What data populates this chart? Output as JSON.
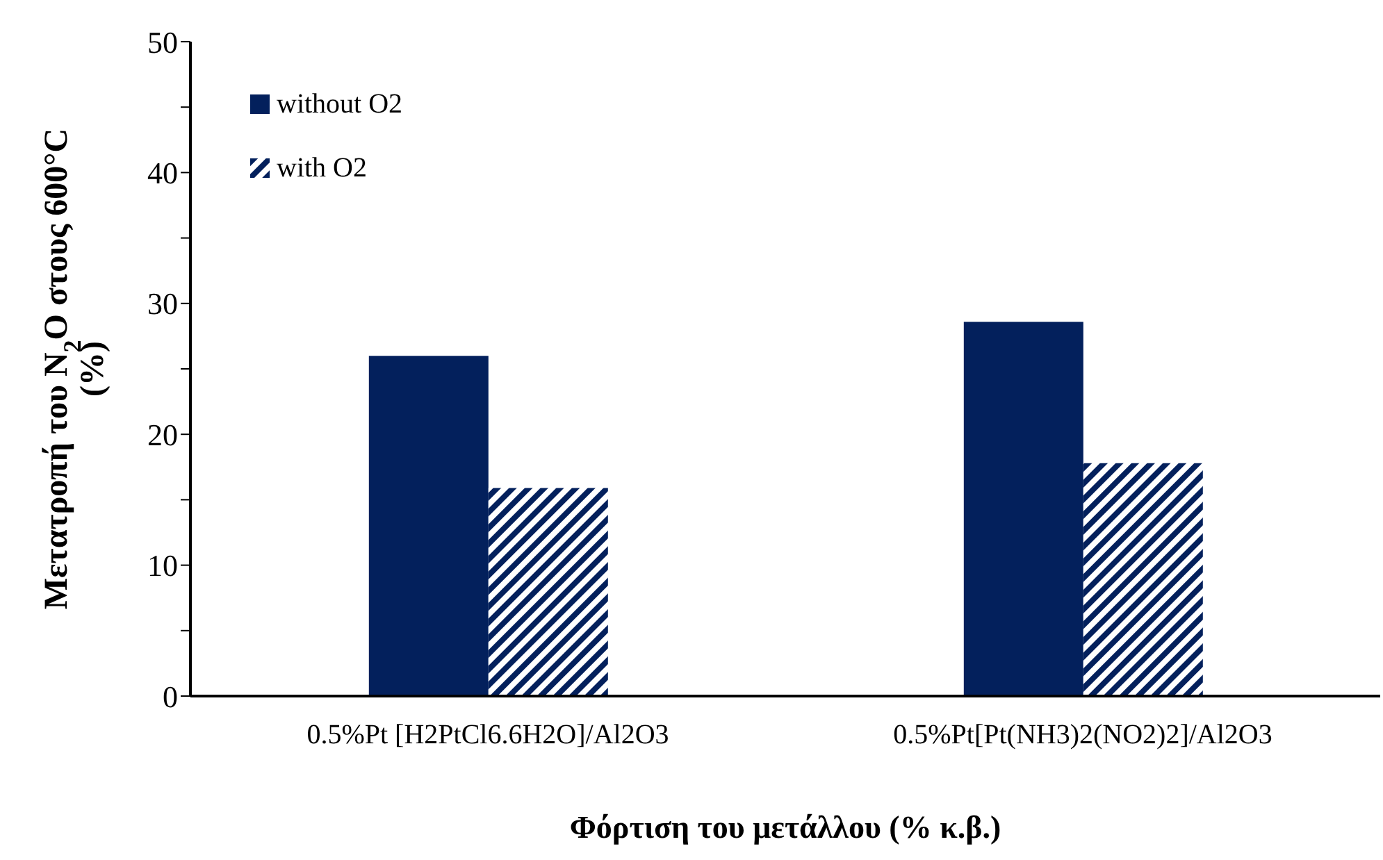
{
  "chart_data": {
    "type": "bar",
    "xlabel": "Φόρτιση του μετάλλου (% κ.β.)",
    "ylabel": "Μετατροπή του N$_{2}$O στους 600°C\n(%)",
    "categories": [
      "0.5%Pt [H2PtCl6.6H2O]/Al2O3",
      "0.5%Pt[Pt(NH3)2(NO2)2]/Al2O3"
    ],
    "series": [
      {
        "name": "without O2",
        "color": "#03205c",
        "values": [
          26,
          28.6
        ]
      },
      {
        "name": "with O2",
        "color": "#03205c",
        "values": [
          15.9,
          17.8
        ]
      }
    ],
    "ylim": [
      0,
      50
    ],
    "yticks": [
      0,
      {
        "value": 5,
        "label": null
      },
      10,
      {
        "value": 15,
        "label": null
      },
      20,
      {
        "value": 25,
        "label": null
      },
      30,
      {
        "value": 35,
        "label": null
      },
      40,
      {
        "value": 45,
        "label": null
      },
      50
    ],
    "legend": "top left"
  }
}
